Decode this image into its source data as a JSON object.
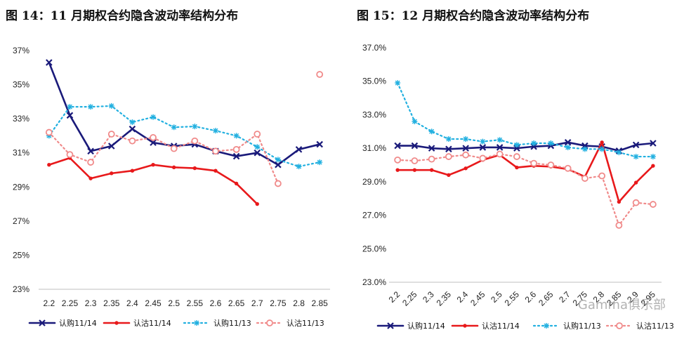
{
  "watermark": "Gamma俱乐部",
  "chart_data": [
    {
      "type": "line",
      "title": "图 14：11 月期权合约隐含波动率结构分布",
      "categories": [
        "2.2",
        "2.25",
        "2.3",
        "2.35",
        "2.4",
        "2.45",
        "2.5",
        "2.55",
        "2.6",
        "2.65",
        "2.7",
        "2.75",
        "2.8",
        "2.85"
      ],
      "yticks": [
        "23%",
        "25%",
        "27%",
        "29%",
        "31%",
        "33%",
        "35%",
        "37%"
      ],
      "ylim": [
        23,
        37
      ],
      "legend_position": "bottom",
      "series": [
        {
          "name": "认购11/14",
          "color": "#1a1a7a",
          "style": "solid",
          "marker": "x",
          "values": [
            36.3,
            33.2,
            31.1,
            31.4,
            32.4,
            31.6,
            31.4,
            31.5,
            31.1,
            30.8,
            31.0,
            30.3,
            31.2,
            31.5
          ]
        },
        {
          "name": "认沽11/14",
          "color": "#e8191b",
          "style": "solid",
          "marker": "circle",
          "values": [
            30.3,
            30.7,
            29.5,
            29.8,
            29.95,
            30.3,
            30.15,
            30.1,
            29.95,
            29.2,
            28.0,
            null,
            null,
            null
          ]
        },
        {
          "name": "认购11/13",
          "color": "#22b0e0",
          "style": "dotted",
          "marker": "star",
          "values": [
            32.0,
            33.7,
            33.7,
            33.75,
            32.8,
            33.1,
            32.5,
            32.55,
            32.3,
            32.0,
            31.35,
            30.6,
            30.2,
            30.45
          ]
        },
        {
          "name": "认沽11/13",
          "color": "#f08a8a",
          "style": "dotted",
          "marker": "open-circle",
          "values": [
            32.2,
            30.9,
            30.45,
            32.1,
            31.7,
            31.9,
            31.25,
            31.7,
            31.1,
            31.2,
            32.1,
            29.2,
            null,
            35.6
          ]
        }
      ]
    },
    {
      "type": "line",
      "title": "图 15：12 月期权合约隐含波动率结构分布",
      "categories": [
        "2.2",
        "2.25",
        "2.3",
        "2.35",
        "2.4",
        "2.45",
        "2.5",
        "2.55",
        "2.6",
        "2.65",
        "2.7",
        "2.75",
        "2.8",
        "2.85",
        "2.9",
        "2.95"
      ],
      "yticks": [
        "23.0%",
        "25.0%",
        "27.0%",
        "29.0%",
        "31.0%",
        "33.0%",
        "35.0%",
        "37.0%"
      ],
      "ylim": [
        23,
        37
      ],
      "legend_position": "bottom",
      "series": [
        {
          "name": "认购11/14",
          "color": "#1a1a7a",
          "style": "solid",
          "marker": "x",
          "values": [
            31.15,
            31.15,
            31.0,
            30.95,
            31.0,
            31.05,
            31.05,
            31.0,
            31.1,
            31.15,
            31.35,
            31.15,
            31.1,
            30.85,
            31.2,
            31.3
          ]
        },
        {
          "name": "认沽11/14",
          "color": "#e8191b",
          "style": "solid",
          "marker": "circle",
          "values": [
            29.7,
            29.7,
            29.7,
            29.4,
            29.8,
            30.3,
            30.6,
            29.85,
            29.95,
            29.9,
            29.75,
            29.3,
            31.35,
            27.8,
            28.95,
            29.95
          ]
        },
        {
          "name": "认购11/13",
          "color": "#22b0e0",
          "style": "dotted",
          "marker": "star",
          "values": [
            34.9,
            32.6,
            32.0,
            31.55,
            31.55,
            31.4,
            31.5,
            31.2,
            31.3,
            31.3,
            31.05,
            30.95,
            30.95,
            30.75,
            30.5,
            30.5
          ]
        },
        {
          "name": "认沽11/13",
          "color": "#f08a8a",
          "style": "dotted",
          "marker": "open-circle",
          "values": [
            30.3,
            30.25,
            30.35,
            30.5,
            30.6,
            30.4,
            30.65,
            30.5,
            30.1,
            30.0,
            29.8,
            29.2,
            29.35,
            26.4,
            27.75,
            27.65
          ]
        }
      ]
    }
  ]
}
